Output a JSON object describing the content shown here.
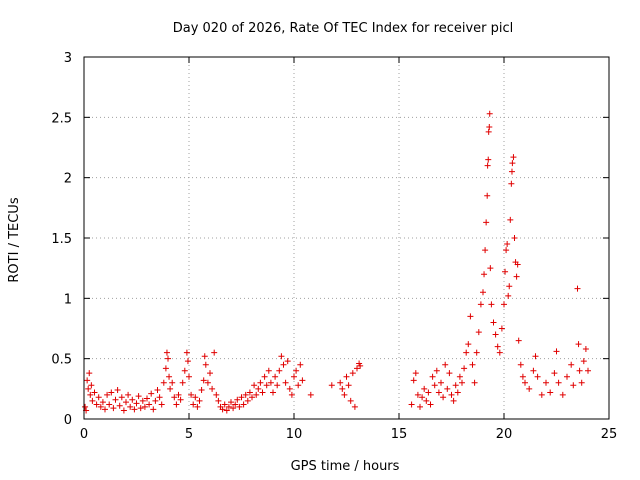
{
  "chart_data": {
    "type": "scatter",
    "title": "Day 020 of 2026, Rate Of TEC Index for receiver picl",
    "xlabel": "GPS time / hours",
    "ylabel": "ROTI / TECUs",
    "xlim": [
      0,
      25
    ],
    "ylim": [
      0,
      3
    ],
    "xticks": [
      0,
      5,
      10,
      15,
      20,
      25
    ],
    "yticks": [
      0,
      0.5,
      1,
      1.5,
      2,
      2.5,
      3
    ],
    "xtick_labels": [
      "0",
      "5",
      "10",
      "15",
      "20",
      "25"
    ],
    "ytick_labels": [
      "0",
      "0.5",
      "1",
      "1.5",
      "2",
      "2.5",
      "3"
    ],
    "grid": true,
    "marker": "plus",
    "marker_color": "#e00000",
    "series": [
      {
        "points": [
          [
            0.05,
            0.1
          ],
          [
            0.1,
            0.07
          ],
          [
            0.15,
            0.32
          ],
          [
            0.2,
            0.25
          ],
          [
            0.25,
            0.38
          ],
          [
            0.3,
            0.2
          ],
          [
            0.35,
            0.28
          ],
          [
            0.4,
            0.15
          ],
          [
            0.5,
            0.22
          ],
          [
            0.6,
            0.12
          ],
          [
            0.7,
            0.18
          ],
          [
            0.8,
            0.1
          ],
          [
            0.9,
            0.14
          ],
          [
            1.0,
            0.08
          ],
          [
            1.1,
            0.2
          ],
          [
            1.2,
            0.12
          ],
          [
            1.3,
            0.22
          ],
          [
            1.4,
            0.09
          ],
          [
            1.5,
            0.16
          ],
          [
            1.6,
            0.24
          ],
          [
            1.7,
            0.11
          ],
          [
            1.8,
            0.18
          ],
          [
            1.9,
            0.07
          ],
          [
            2.0,
            0.14
          ],
          [
            2.1,
            0.2
          ],
          [
            2.2,
            0.1
          ],
          [
            2.3,
            0.16
          ],
          [
            2.4,
            0.08
          ],
          [
            2.5,
            0.13
          ],
          [
            2.6,
            0.19
          ],
          [
            2.7,
            0.09
          ],
          [
            2.8,
            0.15
          ],
          [
            2.9,
            0.1
          ],
          [
            3.0,
            0.17
          ],
          [
            3.1,
            0.12
          ],
          [
            3.2,
            0.21
          ],
          [
            3.3,
            0.08
          ],
          [
            3.4,
            0.15
          ],
          [
            3.5,
            0.24
          ],
          [
            3.6,
            0.18
          ],
          [
            3.7,
            0.12
          ],
          [
            3.8,
            0.3
          ],
          [
            3.9,
            0.42
          ],
          [
            3.95,
            0.55
          ],
          [
            4.0,
            0.5
          ],
          [
            4.05,
            0.35
          ],
          [
            4.1,
            0.25
          ],
          [
            4.2,
            0.3
          ],
          [
            4.3,
            0.18
          ],
          [
            4.4,
            0.12
          ],
          [
            4.5,
            0.2
          ],
          [
            4.6,
            0.16
          ],
          [
            4.7,
            0.3
          ],
          [
            4.8,
            0.4
          ],
          [
            4.9,
            0.55
          ],
          [
            4.95,
            0.48
          ],
          [
            5.0,
            0.35
          ],
          [
            5.1,
            0.2
          ],
          [
            5.2,
            0.12
          ],
          [
            5.3,
            0.18
          ],
          [
            5.4,
            0.1
          ],
          [
            5.5,
            0.15
          ],
          [
            5.6,
            0.24
          ],
          [
            5.7,
            0.32
          ],
          [
            5.75,
            0.52
          ],
          [
            5.8,
            0.45
          ],
          [
            5.9,
            0.3
          ],
          [
            6.0,
            0.38
          ],
          [
            6.1,
            0.25
          ],
          [
            6.2,
            0.55
          ],
          [
            6.3,
            0.2
          ],
          [
            6.4,
            0.15
          ],
          [
            6.5,
            0.1
          ],
          [
            6.6,
            0.08
          ],
          [
            6.7,
            0.12
          ],
          [
            6.8,
            0.07
          ],
          [
            6.9,
            0.1
          ],
          [
            7.0,
            0.14
          ],
          [
            7.1,
            0.09
          ],
          [
            7.2,
            0.12
          ],
          [
            7.3,
            0.16
          ],
          [
            7.4,
            0.1
          ],
          [
            7.5,
            0.18
          ],
          [
            7.6,
            0.12
          ],
          [
            7.7,
            0.2
          ],
          [
            7.8,
            0.15
          ],
          [
            7.9,
            0.22
          ],
          [
            8.0,
            0.18
          ],
          [
            8.1,
            0.28
          ],
          [
            8.2,
            0.2
          ],
          [
            8.3,
            0.25
          ],
          [
            8.4,
            0.3
          ],
          [
            8.5,
            0.22
          ],
          [
            8.6,
            0.35
          ],
          [
            8.7,
            0.28
          ],
          [
            8.8,
            0.4
          ],
          [
            8.9,
            0.3
          ],
          [
            9.0,
            0.22
          ],
          [
            9.1,
            0.35
          ],
          [
            9.2,
            0.28
          ],
          [
            9.3,
            0.4
          ],
          [
            9.4,
            0.52
          ],
          [
            9.5,
            0.45
          ],
          [
            9.6,
            0.3
          ],
          [
            9.7,
            0.48
          ],
          [
            9.8,
            0.25
          ],
          [
            9.9,
            0.2
          ],
          [
            10.0,
            0.35
          ],
          [
            10.1,
            0.4
          ],
          [
            10.2,
            0.28
          ],
          [
            10.3,
            0.45
          ],
          [
            10.4,
            0.32
          ],
          [
            10.8,
            0.2
          ],
          [
            11.8,
            0.28
          ],
          [
            12.2,
            0.3
          ],
          [
            12.3,
            0.25
          ],
          [
            12.4,
            0.2
          ],
          [
            12.5,
            0.35
          ],
          [
            12.6,
            0.28
          ],
          [
            12.7,
            0.15
          ],
          [
            12.8,
            0.38
          ],
          [
            12.9,
            0.1
          ],
          [
            13.0,
            0.42
          ],
          [
            13.1,
            0.46
          ],
          [
            13.15,
            0.44
          ],
          [
            15.6,
            0.12
          ],
          [
            15.7,
            0.32
          ],
          [
            15.8,
            0.38
          ],
          [
            15.9,
            0.2
          ],
          [
            16.0,
            0.1
          ],
          [
            16.1,
            0.18
          ],
          [
            16.2,
            0.25
          ],
          [
            16.3,
            0.15
          ],
          [
            16.4,
            0.22
          ],
          [
            16.5,
            0.12
          ],
          [
            16.6,
            0.35
          ],
          [
            16.7,
            0.28
          ],
          [
            16.8,
            0.4
          ],
          [
            16.9,
            0.22
          ],
          [
            17.0,
            0.3
          ],
          [
            17.1,
            0.18
          ],
          [
            17.2,
            0.45
          ],
          [
            17.3,
            0.25
          ],
          [
            17.4,
            0.38
          ],
          [
            17.5,
            0.2
          ],
          [
            17.6,
            0.15
          ],
          [
            17.7,
            0.28
          ],
          [
            17.8,
            0.22
          ],
          [
            17.9,
            0.35
          ],
          [
            18.0,
            0.3
          ],
          [
            18.1,
            0.42
          ],
          [
            18.2,
            0.55
          ],
          [
            18.3,
            0.62
          ],
          [
            18.4,
            0.85
          ],
          [
            18.5,
            0.45
          ],
          [
            18.6,
            0.3
          ],
          [
            18.7,
            0.55
          ],
          [
            18.8,
            0.72
          ],
          [
            18.9,
            0.95
          ],
          [
            19.0,
            1.05
          ],
          [
            19.05,
            1.2
          ],
          [
            19.1,
            1.4
          ],
          [
            19.15,
            1.63
          ],
          [
            19.2,
            1.85
          ],
          [
            19.22,
            2.1
          ],
          [
            19.25,
            2.15
          ],
          [
            19.27,
            2.38
          ],
          [
            19.3,
            2.42
          ],
          [
            19.32,
            2.53
          ],
          [
            19.35,
            1.25
          ],
          [
            19.4,
            0.95
          ],
          [
            19.5,
            0.8
          ],
          [
            19.6,
            0.7
          ],
          [
            19.7,
            0.6
          ],
          [
            19.8,
            0.55
          ],
          [
            19.9,
            0.75
          ],
          [
            20.0,
            0.95
          ],
          [
            20.05,
            1.22
          ],
          [
            20.1,
            1.4
          ],
          [
            20.15,
            1.45
          ],
          [
            20.2,
            1.02
          ],
          [
            20.25,
            1.1
          ],
          [
            20.3,
            1.65
          ],
          [
            20.35,
            1.95
          ],
          [
            20.38,
            2.05
          ],
          [
            20.4,
            2.12
          ],
          [
            20.45,
            2.17
          ],
          [
            20.5,
            1.5
          ],
          [
            20.55,
            1.3
          ],
          [
            20.6,
            1.18
          ],
          [
            20.65,
            1.28
          ],
          [
            20.7,
            0.65
          ],
          [
            20.8,
            0.45
          ],
          [
            20.9,
            0.35
          ],
          [
            21.0,
            0.3
          ],
          [
            21.2,
            0.25
          ],
          [
            21.4,
            0.4
          ],
          [
            21.5,
            0.52
          ],
          [
            21.6,
            0.35
          ],
          [
            21.8,
            0.2
          ],
          [
            22.0,
            0.3
          ],
          [
            22.2,
            0.22
          ],
          [
            22.4,
            0.38
          ],
          [
            22.5,
            0.56
          ],
          [
            22.6,
            0.3
          ],
          [
            22.8,
            0.2
          ],
          [
            23.0,
            0.35
          ],
          [
            23.2,
            0.45
          ],
          [
            23.3,
            0.28
          ],
          [
            23.5,
            1.08
          ],
          [
            23.55,
            0.62
          ],
          [
            23.6,
            0.4
          ],
          [
            23.7,
            0.3
          ],
          [
            23.8,
            0.48
          ],
          [
            23.9,
            0.58
          ],
          [
            24.0,
            0.4
          ]
        ]
      }
    ]
  }
}
